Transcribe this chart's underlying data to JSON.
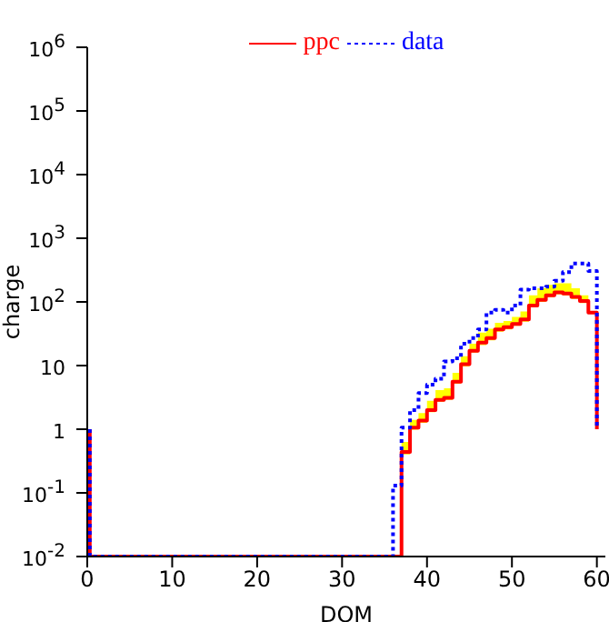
{
  "chart_data": {
    "type": "step",
    "xlabel": "DOM",
    "ylabel": "charge",
    "xlim": [
      0,
      61
    ],
    "xticks": [
      0,
      10,
      20,
      30,
      40,
      50,
      60
    ],
    "ylim": [
      0.01,
      1000000
    ],
    "yticks": [
      {
        "value": 0.01,
        "label": "10$^{-2}$"
      },
      {
        "value": 0.1,
        "label": "10$^{-1}$"
      },
      {
        "value": 1,
        "label": "1"
      },
      {
        "value": 10,
        "label": "10"
      },
      {
        "value": 100,
        "label": "10$^{2}$"
      },
      {
        "value": 1000,
        "label": "10$^{3}$"
      },
      {
        "value": 10000,
        "label": "10$^{4}$"
      },
      {
        "value": 100000,
        "label": "10$^{5}$"
      },
      {
        "value": 1000000,
        "label": "10$^{6}$"
      }
    ],
    "log": "y",
    "grid": false,
    "legend": "top",
    "series": [
      {
        "name": "ppc",
        "color": "#ff0000",
        "line_style": "solid",
        "x": [
          0.3,
          0.3,
          37,
          37,
          38,
          39,
          40,
          41,
          42,
          43,
          44,
          45,
          46,
          47,
          48,
          49,
          50,
          51,
          52,
          53,
          54,
          55,
          56,
          57,
          58,
          59,
          60
        ],
        "values": [
          1,
          0.01,
          0.01,
          0.44,
          1.06,
          1.37,
          2,
          2.9,
          3.1,
          5.6,
          10.5,
          17,
          23,
          27,
          37,
          40,
          45,
          53,
          88,
          108,
          127,
          141,
          136,
          120,
          103,
          68,
          1
        ],
        "lower": [
          null,
          null,
          null,
          0.4,
          0.98,
          1.26,
          1.85,
          2.7,
          2.9,
          5.2,
          9.7,
          16,
          21,
          25,
          34,
          37,
          42,
          49,
          82,
          100,
          118,
          131,
          126,
          111,
          96,
          63,
          null
        ],
        "upper": [
          null,
          null,
          null,
          0.63,
          1.4,
          1.8,
          2.8,
          4.1,
          4.4,
          7.7,
          14,
          22,
          33,
          38,
          47,
          50,
          58,
          71,
          127,
          164,
          186,
          196,
          196,
          164,
          127,
          84,
          null
        ]
      },
      {
        "name": "data",
        "color": "#0000ff",
        "line_style": "dotted",
        "x": [
          0.3,
          0.3,
          36,
          36,
          37,
          38,
          39,
          40,
          41,
          42,
          43,
          44,
          45,
          46,
          47,
          48,
          49,
          50,
          51,
          52,
          53,
          54,
          55,
          56,
          57,
          58,
          59,
          60
        ],
        "values": [
          1,
          0.01,
          0.01,
          0.13,
          1.06,
          2,
          3.7,
          5,
          6.2,
          11.6,
          13,
          22,
          27,
          37,
          68,
          75,
          68,
          88,
          156,
          164,
          164,
          174,
          214,
          294,
          400,
          400,
          305,
          1
        ]
      }
    ]
  }
}
